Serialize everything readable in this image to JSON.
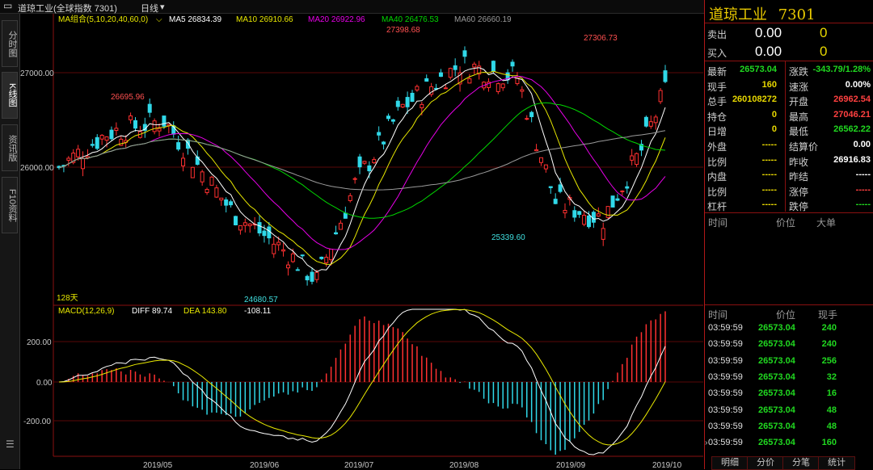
{
  "topbar": {
    "title": "道琼工业(全球指数 7301)",
    "period": "日线",
    "chevron": "▾"
  },
  "left_tabs": [
    "分时图",
    "K线图",
    "资讯版",
    "F10资料"
  ],
  "main_legend": {
    "name": "MA组合(5,10,20,40,60,0)",
    "items": [
      {
        "label": "MA5 26834.39",
        "color": "#ffffff"
      },
      {
        "label": "MA10 26910.66",
        "color": "#e8e800"
      },
      {
        "label": "MA20 26922.96",
        "color": "#e800e8"
      },
      {
        "label": "MA40 26476.53",
        "color": "#00d800"
      },
      {
        "label": "MA60 26660.19",
        "color": "#9a9a9a"
      }
    ]
  },
  "price_axis": [
    "27000.00",
    "26000.00"
  ],
  "macd_axis": [
    "200.00",
    "0.00",
    "-200.00"
  ],
  "annotations": [
    {
      "label": "26695.96",
      "color": "#ff5050"
    },
    {
      "label": "27398.68",
      "color": "#ff5050"
    },
    {
      "label": "27306.73",
      "color": "#ff5050"
    },
    {
      "label": "24680.57",
      "color": "#40e0e0"
    },
    {
      "label": "25339.60",
      "color": "#40e0e0"
    }
  ],
  "days_label": "128天",
  "macd_legend": {
    "name": "MACD(12,26,9)",
    "diff": "DIFF 89.74",
    "dea": "DEA 143.80",
    "macd": "-108.11"
  },
  "x_axis": [
    "2019/05",
    "2019/06",
    "2019/07",
    "2019/08",
    "2019/09",
    "2019/10"
  ],
  "chart_data": {
    "type": "candlestick",
    "ylim": [
      24500,
      27600
    ],
    "macd_ylim": [
      -310,
      310
    ],
    "highs": [
      {
        "label": "26695.96",
        "value": 26695.96
      },
      {
        "label": "27398.68",
        "value": 27398.68
      },
      {
        "label": "27306.73",
        "value": 27306.73
      }
    ],
    "lows": [
      {
        "label": "24680.57",
        "value": 24680.57
      },
      {
        "label": "25339.60",
        "value": 25339.6
      }
    ]
  },
  "quote": {
    "title": "道琼工业",
    "code": "7301",
    "sell_label": "卖出",
    "sell_price": "0.00",
    "sell_vol": "0",
    "buy_label": "买入",
    "buy_price": "0.00",
    "buy_vol": "0",
    "left": [
      {
        "label": "最新",
        "value": "26573.04",
        "color": "#20d820"
      },
      {
        "label": "现手",
        "value": "160",
        "color": "#e8d800"
      },
      {
        "label": "总手",
        "value": "260108272",
        "color": "#e8d800"
      },
      {
        "label": "持仓",
        "value": "0",
        "color": "#e8d800"
      },
      {
        "label": "日增",
        "value": "0",
        "color": "#e8d800"
      },
      {
        "label": "外盘",
        "value": "-----",
        "color": "#e8d800"
      },
      {
        "label": "比例",
        "value": "-----",
        "color": "#e8d800"
      },
      {
        "label": "内盘",
        "value": "-----",
        "color": "#e8d800"
      },
      {
        "label": "比例",
        "value": "-----",
        "color": "#e8d800"
      },
      {
        "label": "杠杆",
        "value": "-----",
        "color": "#e8d800"
      }
    ],
    "right": [
      {
        "label": "涨跌",
        "value": "-343.79/1.28%",
        "color": "#20d820"
      },
      {
        "label": "速涨",
        "value": "0.00%",
        "color": "#ffffff"
      },
      {
        "label": "开盘",
        "value": "26962.54",
        "color": "#ff4040"
      },
      {
        "label": "最高",
        "value": "27046.21",
        "color": "#ff4040"
      },
      {
        "label": "最低",
        "value": "26562.22",
        "color": "#20d820"
      },
      {
        "label": "结算价",
        "value": "0.00",
        "color": "#ffffff"
      },
      {
        "label": "昨收",
        "value": "26916.83",
        "color": "#ffffff"
      },
      {
        "label": "昨结",
        "value": "-----",
        "color": "#ffffff"
      },
      {
        "label": "涨停",
        "value": "-----",
        "color": "#ff4040"
      },
      {
        "label": "跌停",
        "value": "-----",
        "color": "#20d820"
      }
    ]
  },
  "big_orders_header": [
    "时间",
    "价位",
    "大单"
  ],
  "trades_header": [
    "时间",
    "价位",
    "现手"
  ],
  "trades": [
    {
      "time": "03:59:59",
      "price": "26573.04",
      "vol": "240"
    },
    {
      "time": "03:59:59",
      "price": "26573.04",
      "vol": "240"
    },
    {
      "time": "03:59:59",
      "price": "26573.04",
      "vol": "256"
    },
    {
      "time": "03:59:59",
      "price": "26573.04",
      "vol": "32"
    },
    {
      "time": "03:59:59",
      "price": "26573.04",
      "vol": "16"
    },
    {
      "time": "03:59:59",
      "price": "26573.04",
      "vol": "48"
    },
    {
      "time": "03:59:59",
      "price": "26573.04",
      "vol": "48"
    },
    {
      "time": "03:59:59",
      "price": "26573.04",
      "vol": "160"
    }
  ],
  "bottom_tabs": [
    "明细",
    "分价",
    "分笔",
    "统计"
  ]
}
